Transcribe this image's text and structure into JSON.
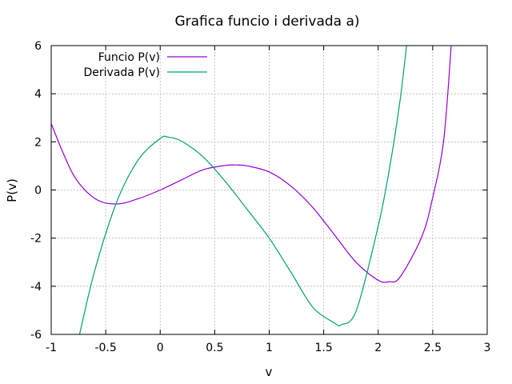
{
  "chart_data": {
    "type": "line",
    "title": "Grafica funcio i derivada a)",
    "xlabel": "v",
    "ylabel": "P(v)",
    "xlim": [
      -1,
      3
    ],
    "ylim": [
      -6,
      6
    ],
    "grid": true,
    "legend_position": "top-left",
    "xticks": [
      "-1",
      "-0.5",
      "0",
      "0.5",
      "1",
      "1.5",
      "2",
      "2.5",
      "3"
    ],
    "yticks": [
      "-6",
      "-4",
      "-2",
      "0",
      "2",
      "4",
      "6"
    ],
    "series": [
      {
        "name": "Funcio P(v)",
        "color": "#9400d3",
        "x": [
          -1.0,
          -0.8,
          -0.6,
          -0.4,
          -0.2,
          0.0,
          0.2,
          0.4,
          0.6,
          0.7,
          0.8,
          1.0,
          1.2,
          1.4,
          1.6,
          1.8,
          2.0,
          2.1,
          2.2,
          2.4,
          2.5,
          2.6,
          2.67
        ],
        "y": [
          2.75,
          0.66,
          -0.35,
          -0.58,
          -0.36,
          0.0,
          0.43,
          0.85,
          1.02,
          1.04,
          1.0,
          0.75,
          0.16,
          -0.73,
          -1.87,
          -3.02,
          -3.75,
          -3.81,
          -3.62,
          -1.94,
          -0.31,
          2.04,
          6.0
        ]
      },
      {
        "name": "Derivada P(v)",
        "color": "#009e73",
        "x": [
          -0.74,
          -0.6,
          -0.4,
          -0.2,
          0.0,
          0.07,
          0.2,
          0.4,
          0.6,
          0.8,
          1.0,
          1.2,
          1.4,
          1.6,
          1.66,
          1.8,
          2.0,
          2.1,
          2.2,
          2.26
        ],
        "y": [
          -6.0,
          -3.34,
          -0.51,
          1.26,
          2.14,
          2.2,
          2.02,
          1.35,
          0.34,
          -0.82,
          -2.0,
          -3.42,
          -4.87,
          -5.53,
          -5.6,
          -5.0,
          -1.5,
          0.8,
          3.7,
          6.0
        ]
      }
    ]
  }
}
